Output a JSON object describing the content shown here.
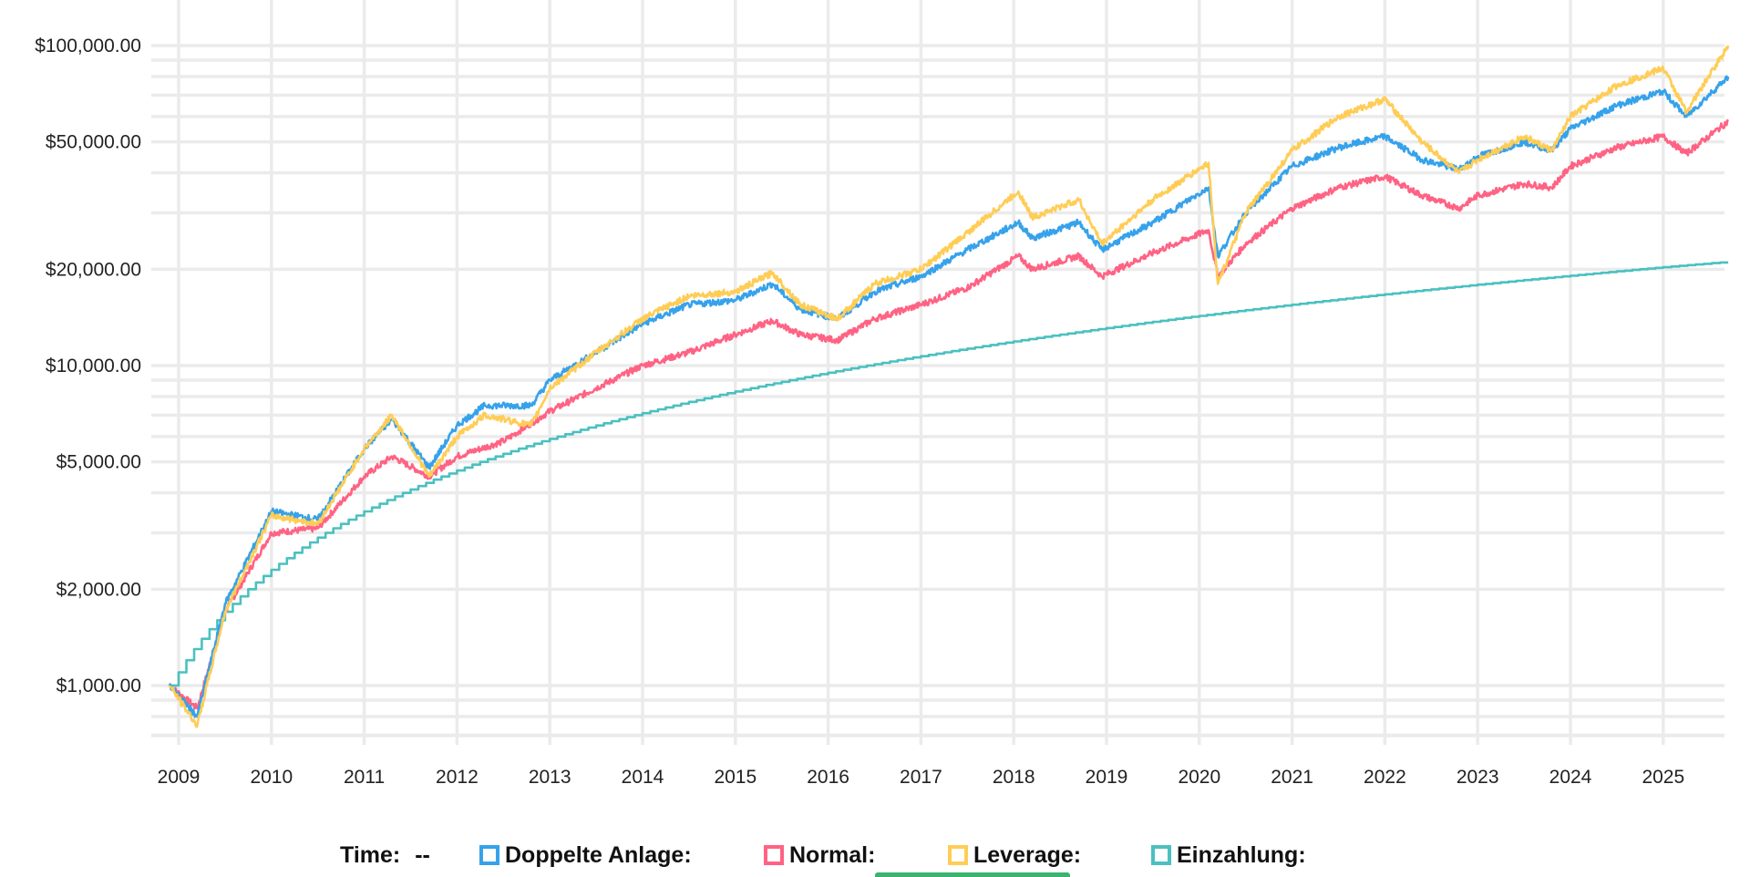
{
  "chart_data": {
    "type": "line",
    "yscale": "log",
    "ylim": [
      700,
      139000
    ],
    "xlim": [
      2008.85,
      2025.75
    ],
    "y_ticks": [
      {
        "value": 100000,
        "label": "$100,000.00"
      },
      {
        "value": 50000,
        "label": "$50,000.00"
      },
      {
        "value": 20000,
        "label": "$20,000.00"
      },
      {
        "value": 10000,
        "label": "$10,000.00"
      },
      {
        "value": 5000,
        "label": "$5,000.00"
      },
      {
        "value": 2000,
        "label": "$2,000.00"
      },
      {
        "value": 1000,
        "label": "$1,000.00"
      }
    ],
    "x_ticks": [
      "2009",
      "2010",
      "2011",
      "2012",
      "2013",
      "2014",
      "2015",
      "2016",
      "2017",
      "2018",
      "2019",
      "2020",
      "2021",
      "2022",
      "2023",
      "2024",
      "2025"
    ],
    "grid": true,
    "series": [
      {
        "name": "Doppelte Anlage",
        "color": "#36a2eb",
        "x": [
          2008.9,
          2009.2,
          2009.5,
          2010,
          2010.5,
          2011,
          2011.3,
          2011.7,
          2012,
          2012.3,
          2012.8,
          2013,
          2013.5,
          2014,
          2014.5,
          2015,
          2015.4,
          2015.7,
          2016.1,
          2016.5,
          2017,
          2017.5,
          2018.05,
          2018.2,
          2018.7,
          2018.95,
          2019.5,
          2020.1,
          2020.2,
          2020.5,
          2021,
          2021.5,
          2022,
          2022.4,
          2022.8,
          2023,
          2023.5,
          2023.8,
          2024,
          2024.5,
          2025,
          2025.25,
          2025.7
        ],
        "y": [
          1000,
          800,
          1800,
          3500,
          3300,
          5500,
          6800,
          4800,
          6500,
          7500,
          7500,
          9000,
          11000,
          13500,
          15500,
          16000,
          18000,
          15000,
          14000,
          17000,
          19000,
          23000,
          28000,
          25000,
          28000,
          23000,
          28000,
          36000,
          22000,
          30000,
          42000,
          48000,
          52000,
          44000,
          41000,
          45000,
          50000,
          47000,
          55000,
          65000,
          72000,
          60000,
          80000
        ]
      },
      {
        "name": "Normal",
        "color": "#ff6384",
        "x": [
          2008.9,
          2009.2,
          2009.5,
          2010,
          2010.5,
          2011,
          2011.3,
          2011.7,
          2012,
          2012.5,
          2013,
          2013.5,
          2014,
          2014.5,
          2015,
          2015.4,
          2015.7,
          2016.1,
          2016.5,
          2017,
          2017.5,
          2018.05,
          2018.2,
          2018.7,
          2018.95,
          2019.5,
          2020.1,
          2020.2,
          2020.5,
          2021,
          2021.5,
          2022,
          2022.4,
          2022.8,
          2023,
          2023.5,
          2023.8,
          2024,
          2024.5,
          2025,
          2025.25,
          2025.7
        ],
        "y": [
          1000,
          850,
          1700,
          3000,
          3100,
          4500,
          5200,
          4500,
          5200,
          5800,
          7200,
          8500,
          10000,
          11000,
          12500,
          13800,
          12500,
          12000,
          14000,
          15500,
          17500,
          22000,
          20000,
          22000,
          19000,
          22500,
          26500,
          19000,
          24000,
          31000,
          36000,
          39000,
          34000,
          31000,
          34000,
          37000,
          36000,
          42000,
          48000,
          52000,
          46000,
          58000
        ]
      },
      {
        "name": "Leverage",
        "color": "#ffcd56",
        "x": [
          2008.9,
          2009.2,
          2009.5,
          2010,
          2010.5,
          2011,
          2011.3,
          2011.7,
          2012,
          2012.3,
          2012.8,
          2013,
          2013.5,
          2014,
          2014.5,
          2015,
          2015.4,
          2015.7,
          2016.1,
          2016.5,
          2017,
          2017.5,
          2018.05,
          2018.2,
          2018.7,
          2018.95,
          2019.5,
          2020.1,
          2020.2,
          2020.5,
          2021,
          2021.5,
          2022,
          2022.4,
          2022.8,
          2023,
          2023.5,
          2023.8,
          2024,
          2024.5,
          2025,
          2025.25,
          2025.7
        ],
        "y": [
          1000,
          750,
          1700,
          3400,
          3200,
          5500,
          7000,
          4500,
          6000,
          7000,
          6500,
          8500,
          11000,
          14000,
          16500,
          17000,
          19500,
          15500,
          14000,
          18000,
          20000,
          26000,
          35000,
          29000,
          33000,
          24000,
          33000,
          43000,
          18000,
          30000,
          47000,
          60000,
          68000,
          50000,
          40000,
          44000,
          52000,
          47000,
          60000,
          75000,
          85000,
          62000,
          100000
        ]
      },
      {
        "name": "Einzahlung",
        "color": "#4bc0c0",
        "x": [
          2008.9,
          2009,
          2010,
          2011,
          2012,
          2013,
          2014,
          2015,
          2016,
          2017,
          2018,
          2019,
          2020,
          2021,
          2022,
          2023,
          2024,
          2025,
          2025.7
        ],
        "y": [
          1000,
          1100,
          2300,
          3500,
          4700,
          5900,
          7100,
          8300,
          9500,
          10700,
          11900,
          13100,
          14300,
          15500,
          16700,
          17900,
          19100,
          20300,
          21100
        ]
      }
    ]
  },
  "legend": {
    "time_label": "Time:",
    "time_value": "--",
    "items": [
      {
        "label": "Doppelte Anlage:",
        "color": "#36a2eb"
      },
      {
        "label": "Normal:",
        "color": "#ff6384"
      },
      {
        "label": "Leverage:",
        "color": "#ffcd56"
      },
      {
        "label": "Einzahlung:",
        "color": "#4bc0c0"
      }
    ]
  }
}
